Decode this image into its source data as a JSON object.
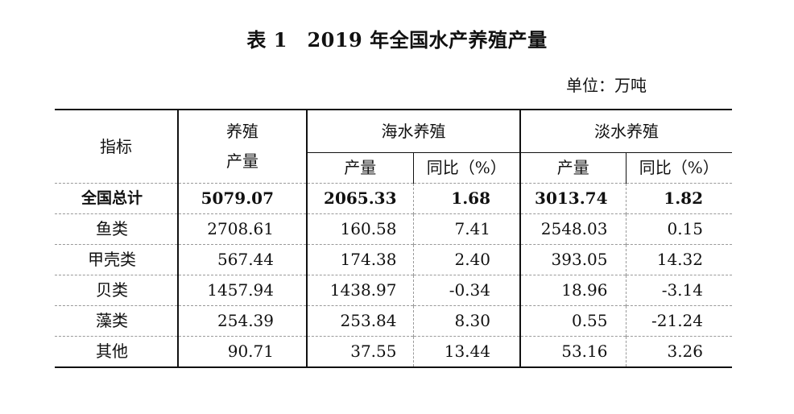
{
  "title": "表 1　2019 年全国水产养殖产量",
  "unit": "单位：万吨",
  "headers": {
    "indicator": "指标",
    "total_output_line1": "养殖",
    "total_output_line2": "产量",
    "seawater": "海水养殖",
    "freshwater": "淡水养殖",
    "output": "产量",
    "yoy": "同比（%）"
  },
  "rows": [
    {
      "name": "全国总计",
      "total": "5079.07",
      "sea_output": "2065.33",
      "sea_yoy": "1.68",
      "fresh_output": "3013.74",
      "fresh_yoy": "1.82"
    },
    {
      "name": "鱼类",
      "total": "2708.61",
      "sea_output": "160.58",
      "sea_yoy": "7.41",
      "fresh_output": "2548.03",
      "fresh_yoy": "0.15"
    },
    {
      "name": "甲壳类",
      "total": "567.44",
      "sea_output": "174.38",
      "sea_yoy": "2.40",
      "fresh_output": "393.05",
      "fresh_yoy": "14.32"
    },
    {
      "name": "贝类",
      "total": "1457.94",
      "sea_output": "1438.97",
      "sea_yoy": "-0.34",
      "fresh_output": "18.96",
      "fresh_yoy": "-3.14"
    },
    {
      "name": "藻类",
      "total": "254.39",
      "sea_output": "253.84",
      "sea_yoy": "8.30",
      "fresh_output": "0.55",
      "fresh_yoy": "-21.24"
    },
    {
      "name": "其他",
      "total": "90.71",
      "sea_output": "37.55",
      "sea_yoy": "13.44",
      "fresh_output": "53.16",
      "fresh_yoy": "3.26"
    }
  ]
}
